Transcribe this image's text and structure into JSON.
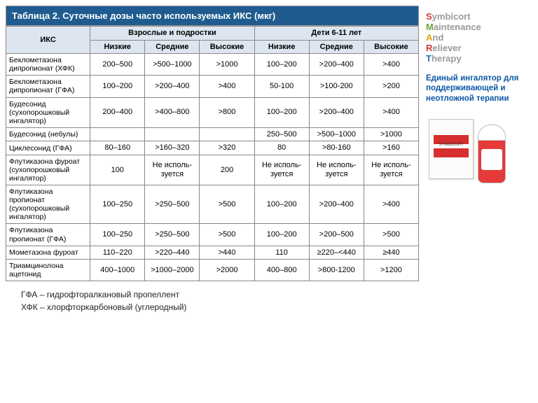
{
  "table": {
    "title": "Таблица 2. Суточные дозы часто используемых ИКС (мкг)",
    "header_drug": "ИКС",
    "header_group_adult": "Взрослые и подростки",
    "header_group_child": "Дети 6-11 лет",
    "dose_levels": [
      "Низкие",
      "Средние",
      "Высокие"
    ],
    "col_widths": [
      "120px",
      "78px",
      "78px",
      "78px",
      "78px",
      "78px",
      "78px"
    ],
    "header_bg": "#dde6f0",
    "title_bg": "#1f5b8f",
    "border_color": "#888888",
    "rows": [
      {
        "label": "Беклометазона дипропионат (ХФК)",
        "vals": [
          "200–500",
          ">500–1000",
          ">1000",
          "100–200",
          ">200–400",
          ">400"
        ]
      },
      {
        "label": "Беклометазона дипропионат (ГФА)",
        "vals": [
          "100–200",
          ">200–400",
          ">400",
          "50-100",
          ">100-200",
          ">200"
        ]
      },
      {
        "label": "Будесонид (сухопорошковый ингалятор)",
        "vals": [
          "200–400",
          ">400–800",
          ">800",
          "100–200",
          ">200–400",
          ">400"
        ]
      },
      {
        "label": "Будесонид (небулы)",
        "vals": [
          "",
          "",
          "",
          "250–500",
          ">500–1000",
          ">1000"
        ]
      },
      {
        "label": "Циклесонид (ГФА)",
        "vals": [
          "80–160",
          ">160–320",
          ">320",
          "80",
          ">80-160",
          ">160"
        ]
      },
      {
        "label": "Флутиказона фуроат (сухопорошковый ингалятор)",
        "vals": [
          "100",
          "Не исполь-зуется",
          "200",
          "Не исполь-зуется",
          "Не исполь-зуется",
          "Не исполь-зуется"
        ]
      },
      {
        "label": "Флутиказона пропионат (сухопорошковый ингалятор)",
        "vals": [
          "100–250",
          ">250–500",
          ">500",
          "100–200",
          ">200–400",
          ">400"
        ]
      },
      {
        "label": "Флутиказона пропионат (ГФА)",
        "vals": [
          "100–250",
          ">250–500",
          ">500",
          "100–200",
          ">200–500",
          ">500"
        ]
      },
      {
        "label": "Мометазона фуроат",
        "vals": [
          "110–220",
          ">220–440",
          ">440",
          "110",
          "≥220–<440",
          "≥440"
        ]
      },
      {
        "label": "Триамцинолона ацетонид",
        "vals": [
          "400–1000",
          ">1000–2000",
          ">2000",
          "400–800",
          ">800-1200",
          ">1200"
        ]
      }
    ]
  },
  "footnotes": {
    "line1": "ГФА – гидрофторалкановый пропеллент",
    "line2": "ХФК – хлорфторкарбоновый (углеродный)"
  },
  "smart": {
    "letters": [
      "S",
      "M",
      "A",
      "R",
      "T"
    ],
    "words": [
      "ymbicort",
      "aintenance",
      "nd",
      "eliever",
      "herapy"
    ],
    "accent_colors": [
      "#d13a3a",
      "#70a53b",
      "#e6a211",
      "#d13a3a",
      "#2f76b6"
    ],
    "rest_color": "#9a9a9a",
    "tagline": "Единый ингалятор для поддерживающей и неотложной терапии",
    "tagline_color": "#0b57a6"
  },
  "product": {
    "box_label": "SYMBICORT",
    "box_bg": "#fdfcfa",
    "inhaler_red": "#e63a3a"
  }
}
